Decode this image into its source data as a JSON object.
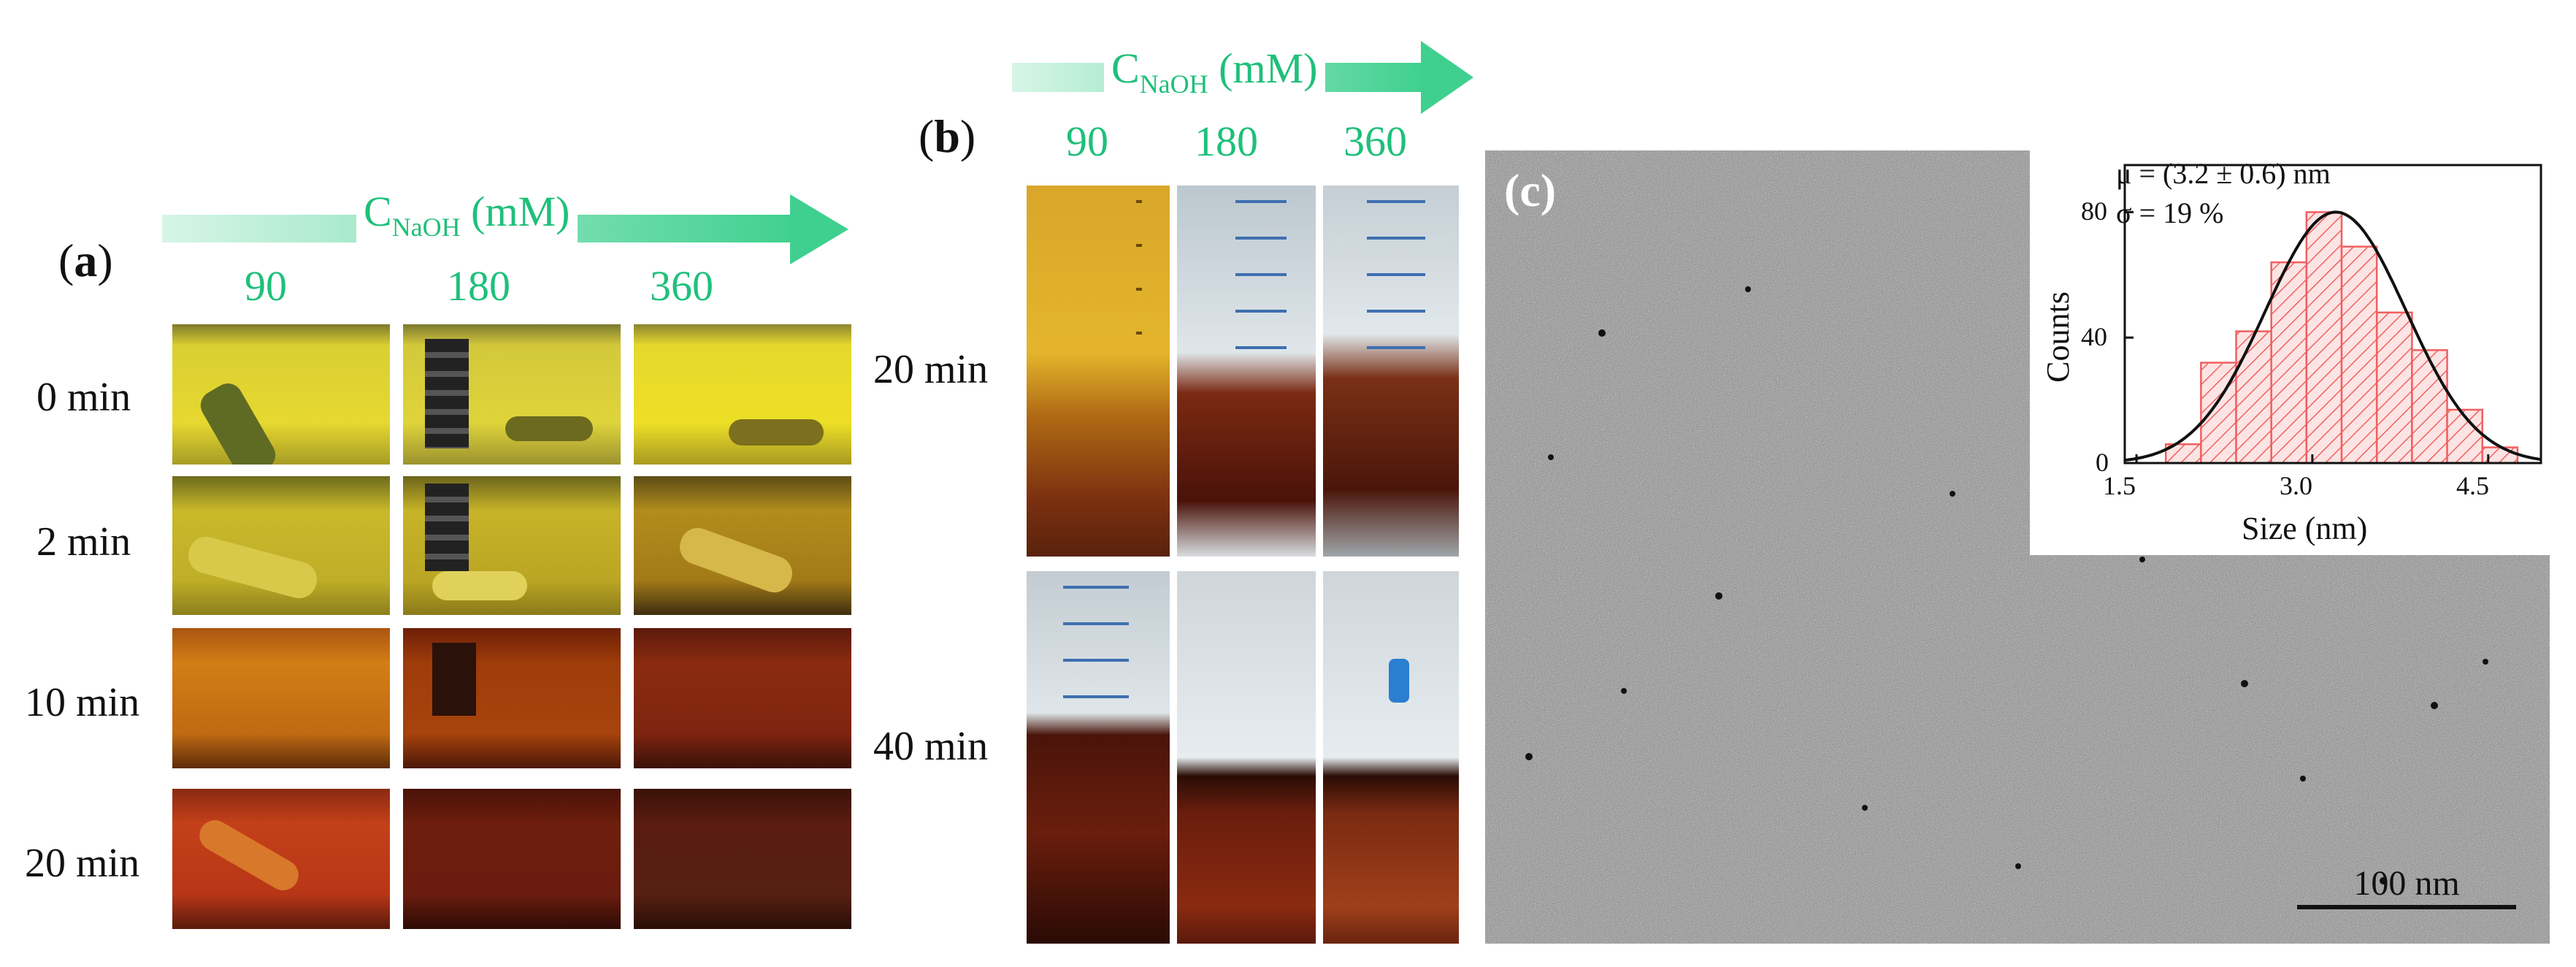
{
  "panel_a": {
    "label": "a",
    "header": {
      "main": "C",
      "sub": "NaOH",
      "unit": " (mM)"
    },
    "concentrations": [
      "90",
      "180",
      "360"
    ],
    "times": [
      "0 min",
      "2 min",
      "10 min",
      "20 min"
    ]
  },
  "panel_b": {
    "label": "b",
    "header": {
      "main": "C",
      "sub": "NaOH",
      "unit": " (mM)"
    },
    "concentrations": [
      "90",
      "180",
      "360"
    ],
    "times": [
      "20 min",
      "40 min"
    ]
  },
  "panel_c": {
    "label": "c",
    "scale_bar": "100 nm",
    "inset": {
      "mu_text": "μ = (3.2 ± 0.6) nm",
      "sigma_text": "σ = 19 %",
      "xlabel": "Size (nm)",
      "ylabel": "Counts",
      "x_ticks": [
        "1.5",
        "3.0",
        "4.5"
      ],
      "y_ticks": [
        "0",
        "40",
        "80"
      ]
    }
  },
  "chart_data": {
    "type": "bar",
    "xlabel": "Size (nm)",
    "ylabel": "Counts",
    "xlim": [
      1.4,
      4.95
    ],
    "ylim": [
      0,
      95
    ],
    "bin_width": 0.3,
    "bin_starts": [
      1.75,
      2.05,
      2.35,
      2.65,
      2.95,
      3.25,
      3.55,
      3.85,
      4.15,
      4.45
    ],
    "values": [
      6,
      32,
      42,
      64,
      80,
      69,
      48,
      36,
      17,
      5
    ],
    "fit": {
      "type": "gaussian",
      "mean": 3.2,
      "sd": 0.6,
      "peak": 80
    },
    "colors": {
      "bars": "#f06060",
      "fit": "#111111"
    }
  }
}
